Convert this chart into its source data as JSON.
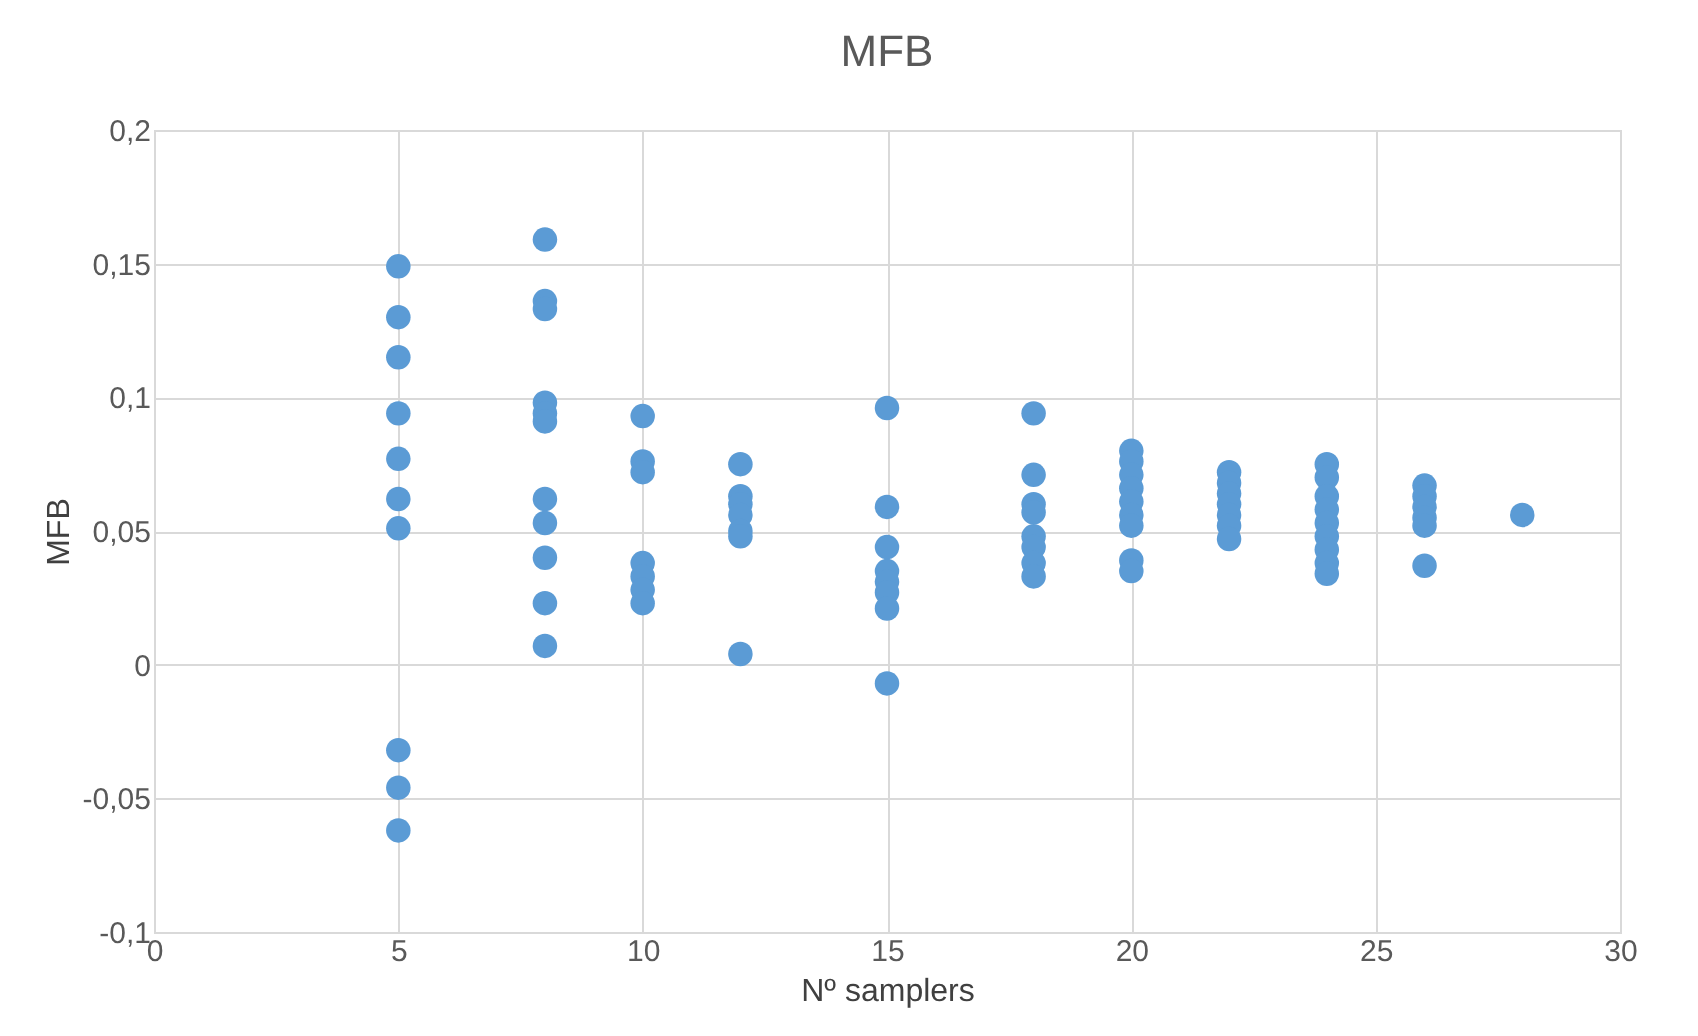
{
  "chart_data": {
    "type": "scatter",
    "title": "MFB",
    "xlabel": "Nº samplers",
    "ylabel": "MFB",
    "x": [
      5,
      5,
      5,
      5,
      5,
      5,
      5,
      5,
      5,
      5,
      8,
      8,
      8,
      8,
      8,
      8,
      8,
      8,
      8,
      8,
      8,
      10,
      10,
      10,
      10,
      10,
      10,
      10,
      12,
      12,
      12,
      12,
      12,
      12,
      12,
      15,
      15,
      15,
      15,
      15,
      15,
      15,
      15,
      18,
      18,
      18,
      18,
      18,
      18,
      18,
      18,
      20,
      20,
      20,
      20,
      20,
      20,
      20,
      20,
      20,
      22,
      22,
      22,
      22,
      22,
      22,
      22,
      24,
      24,
      24,
      24,
      24,
      24,
      24,
      24,
      24,
      26,
      26,
      26,
      26,
      26,
      26,
      28
    ],
    "series": [
      {
        "color": "#5b9bd5",
        "values": [
          0.149,
          0.13,
          0.115,
          0.094,
          0.077,
          0.062,
          0.051,
          -0.032,
          -0.046,
          -0.062,
          0.159,
          0.136,
          0.133,
          0.098,
          0.094,
          0.091,
          0.062,
          0.053,
          0.04,
          0.023,
          0.007,
          0.093,
          0.076,
          0.072,
          0.038,
          0.033,
          0.028,
          0.023,
          0.075,
          0.063,
          0.06,
          0.056,
          0.05,
          0.048,
          0.004,
          0.096,
          0.059,
          0.044,
          0.035,
          0.031,
          0.027,
          0.021,
          -0.007,
          0.094,
          0.071,
          0.06,
          0.057,
          0.048,
          0.044,
          0.038,
          0.033,
          0.08,
          0.076,
          0.071,
          0.066,
          0.061,
          0.056,
          0.052,
          0.039,
          0.035,
          0.072,
          0.068,
          0.064,
          0.06,
          0.056,
          0.052,
          0.047,
          0.075,
          0.07,
          0.063,
          0.058,
          0.053,
          0.048,
          0.043,
          0.038,
          0.034,
          0.067,
          0.063,
          0.059,
          0.055,
          0.052,
          0.037,
          0.056
        ]
      }
    ],
    "xlim": [
      0,
      30
    ],
    "xticks": [
      0,
      5,
      10,
      15,
      20,
      25,
      30
    ],
    "ylim": [
      -0.1,
      0.2
    ],
    "yticks": [
      {
        "value": -0.1,
        "label": "-0,1"
      },
      {
        "value": -0.05,
        "label": "-0,05"
      },
      {
        "value": 0,
        "label": "0"
      },
      {
        "value": 0.05,
        "label": "0,05"
      },
      {
        "value": 0.1,
        "label": "0,1"
      },
      {
        "value": 0.15,
        "label": "0,15"
      },
      {
        "value": 0.2,
        "label": "0,2"
      }
    ],
    "grid": true,
    "marker": "circle",
    "legend": false
  }
}
